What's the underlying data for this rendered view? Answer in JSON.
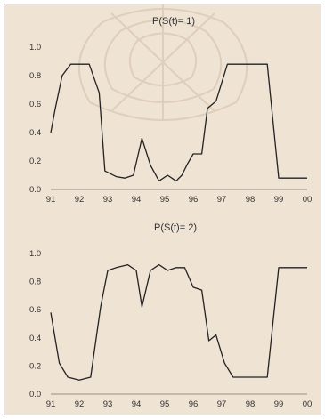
{
  "chart_data": [
    {
      "type": "line",
      "title": "P(S(t)= 1)",
      "x_ticks": [
        "91",
        "92",
        "93",
        "94",
        "95",
        "96",
        "97",
        "98",
        "99",
        "00"
      ],
      "y_ticks": [
        "0.0",
        "0.2",
        "0.4",
        "0.6",
        "0.8",
        "1.0"
      ],
      "ylim": [
        0,
        1
      ],
      "xlim": [
        91,
        100
      ],
      "x": [
        91.0,
        91.15,
        91.4,
        91.7,
        92.0,
        92.35,
        92.7,
        92.9,
        93.3,
        93.6,
        93.9,
        94.2,
        94.5,
        94.8,
        95.1,
        95.4,
        95.6,
        95.8,
        96.0,
        96.3,
        96.5,
        96.8,
        97.2,
        97.6,
        98.0,
        98.3,
        98.6,
        99.0,
        99.5,
        100.0
      ],
      "series": [
        {
          "values": [
            0.4,
            0.56,
            0.8,
            0.88,
            0.88,
            0.88,
            0.68,
            0.13,
            0.09,
            0.08,
            0.1,
            0.36,
            0.17,
            0.06,
            0.1,
            0.06,
            0.1,
            0.18,
            0.25,
            0.25,
            0.57,
            0.62,
            0.88,
            0.88,
            0.88,
            0.88,
            0.88,
            0.08,
            0.08,
            0.08
          ]
        }
      ]
    },
    {
      "type": "line",
      "title": "P(S(t)= 2)",
      "x_ticks": [
        "91",
        "92",
        "93",
        "94",
        "95",
        "96",
        "97",
        "98",
        "99",
        "00"
      ],
      "y_ticks": [
        "0.0",
        "0.2",
        "0.4",
        "0.6",
        "0.8",
        "1.0"
      ],
      "ylim": [
        0,
        1
      ],
      "xlim": [
        91,
        100
      ],
      "x": [
        91.0,
        91.3,
        91.6,
        92.0,
        92.4,
        92.75,
        93.0,
        93.3,
        93.7,
        94.0,
        94.2,
        94.5,
        94.8,
        95.1,
        95.4,
        95.7,
        96.0,
        96.3,
        96.55,
        96.8,
        97.1,
        97.4,
        97.8,
        98.2,
        98.6,
        99.0,
        99.5,
        100.0
      ],
      "series": [
        {
          "values": [
            0.58,
            0.22,
            0.12,
            0.1,
            0.12,
            0.62,
            0.88,
            0.9,
            0.92,
            0.88,
            0.62,
            0.88,
            0.92,
            0.88,
            0.9,
            0.9,
            0.76,
            0.74,
            0.38,
            0.42,
            0.22,
            0.12,
            0.12,
            0.12,
            0.12,
            0.9,
            0.9,
            0.9
          ]
        }
      ]
    }
  ]
}
